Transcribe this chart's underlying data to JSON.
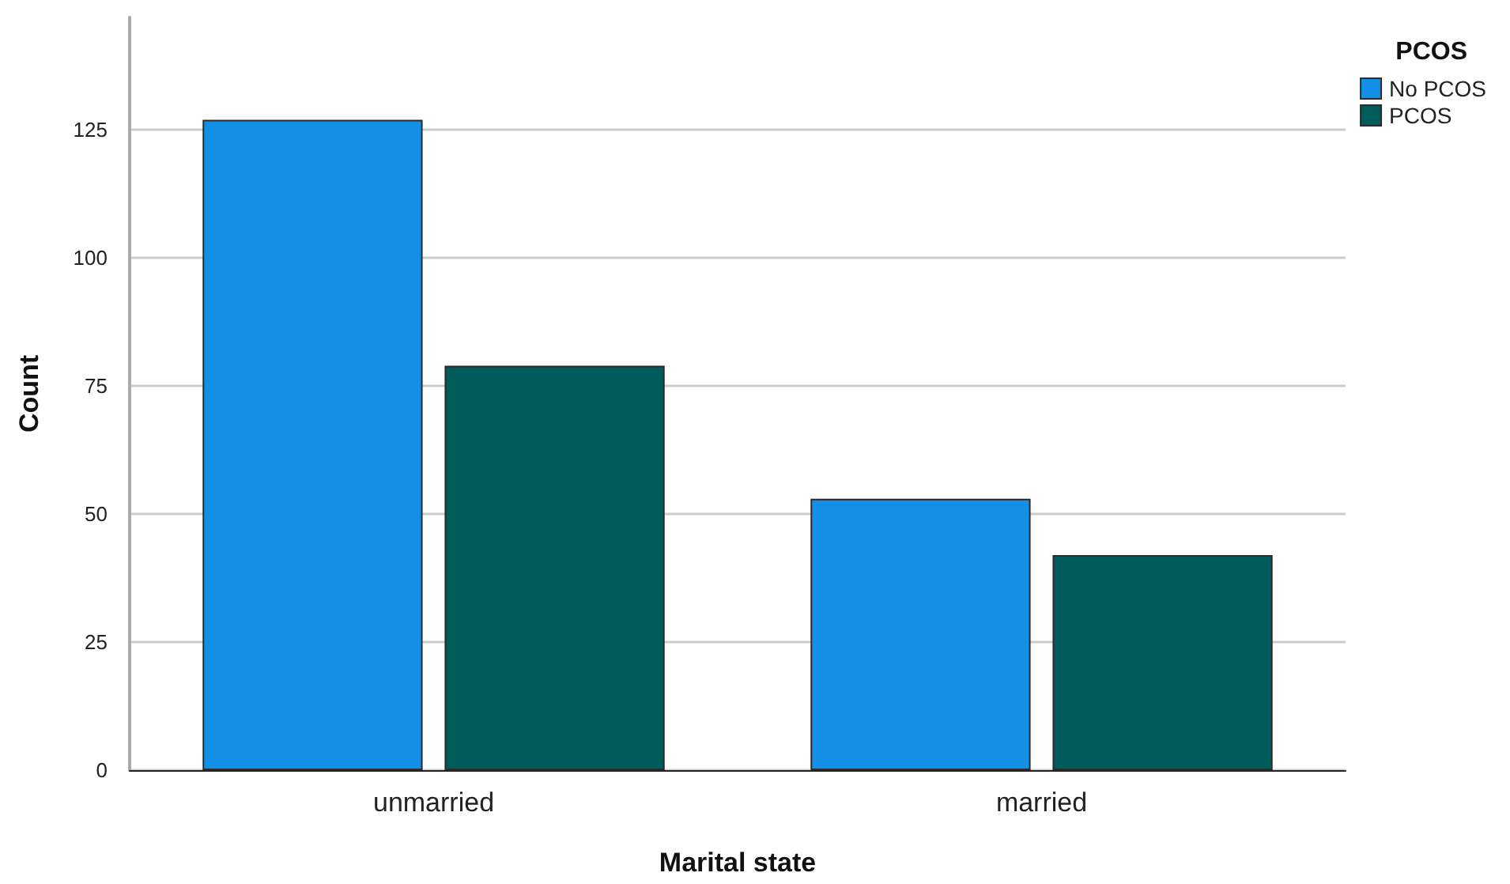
{
  "chart_data": {
    "type": "bar",
    "xlabel": "Marital state",
    "ylabel": "Count",
    "legend_title": "PCOS",
    "categories": [
      "unmarried",
      "married"
    ],
    "series": [
      {
        "name": "No PCOS",
        "color": "#1390e6",
        "values": [
          127,
          53
        ]
      },
      {
        "name": "PCOS",
        "color": "#005c5a",
        "values": [
          79,
          42
        ]
      }
    ],
    "ylim": [
      0,
      147
    ],
    "yticks": [
      0,
      25,
      50,
      75,
      100,
      125
    ],
    "grid": "y",
    "legend": "top right"
  }
}
